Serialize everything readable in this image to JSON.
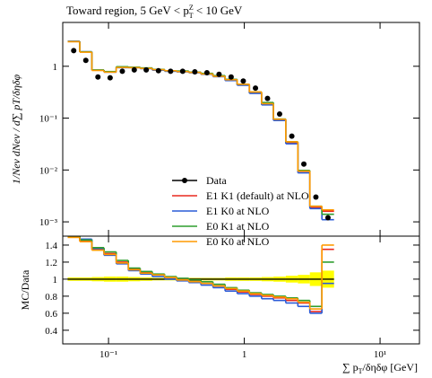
{
  "chart_data": [
    {
      "type": "histogram",
      "yscale": "log",
      "title_parts": [
        "Toward region, 5 GeV < p",
        "Z",
        "T",
        " < 10 GeV"
      ],
      "ylabel": "1/Nev dNev / d∑ pT/δηδφ",
      "bins": [
        0.05,
        0.0614,
        0.0754,
        0.0926,
        0.114,
        0.14,
        0.171,
        0.21,
        0.259,
        0.317,
        0.39,
        0.479,
        0.588,
        0.722,
        0.886,
        1.09,
        1.34,
        1.64,
        2.02,
        2.48,
        3.04,
        3.73,
        4.58
      ],
      "ylim": [
        0.00053,
        7
      ],
      "yticks": [
        {
          "value": 0.001,
          "label": "10⁻³"
        },
        {
          "value": 0.01,
          "label": "10⁻²"
        },
        {
          "value": 0.1,
          "label": "10⁻¹"
        },
        1
      ],
      "legend": "lower center",
      "series": [
        {
          "name": "Data",
          "color": "#000000",
          "marker": "circle",
          "values": [
            2.0,
            1.3,
            0.62,
            0.6,
            0.8,
            0.85,
            0.85,
            0.82,
            0.8,
            0.8,
            0.78,
            0.75,
            0.7,
            0.62,
            0.52,
            0.38,
            0.24,
            0.12,
            0.045,
            0.013,
            0.003,
            0.0012
          ]
        },
        {
          "name": "E1 K1 (default) at NLO",
          "color": "#e8281e",
          "values": [
            3.0,
            1.89,
            0.84,
            0.78,
            0.96,
            0.95,
            0.92,
            0.86,
            0.82,
            0.8,
            0.76,
            0.71,
            0.64,
            0.55,
            0.44,
            0.31,
            0.19,
            0.094,
            0.034,
            0.0094,
            0.0019,
            0.0016
          ]
        },
        {
          "name": "E1 K0 at NLO",
          "color": "#2a5bd7",
          "values": [
            3.04,
            1.91,
            0.84,
            0.77,
            0.94,
            0.94,
            0.9,
            0.84,
            0.8,
            0.78,
            0.75,
            0.7,
            0.63,
            0.53,
            0.43,
            0.3,
            0.18,
            0.09,
            0.032,
            0.0088,
            0.0018,
            0.0011
          ]
        },
        {
          "name": "E0 K1 at NLO",
          "color": "#2f9e2f",
          "values": [
            3.0,
            1.9,
            0.85,
            0.79,
            0.98,
            0.96,
            0.93,
            0.87,
            0.82,
            0.81,
            0.77,
            0.73,
            0.66,
            0.56,
            0.45,
            0.32,
            0.2,
            0.096,
            0.035,
            0.0098,
            0.002,
            0.0014
          ]
        },
        {
          "name": "E0 K0 at NLO",
          "color": "#ff9a00",
          "values": [
            2.98,
            1.87,
            0.83,
            0.77,
            0.95,
            0.94,
            0.91,
            0.86,
            0.82,
            0.79,
            0.76,
            0.71,
            0.64,
            0.55,
            0.45,
            0.32,
            0.19,
            0.095,
            0.035,
            0.0095,
            0.002,
            0.0017
          ]
        }
      ]
    },
    {
      "type": "ratio",
      "ylabel": "MC/Data",
      "xlabel_parts": [
        "∑ p",
        "T",
        "/δηδφ [GeV]"
      ],
      "xscale": "log",
      "xlim": [
        0.046,
        19.5
      ],
      "xticks": [
        {
          "value": 0.1,
          "label": "10⁻¹"
        },
        1,
        {
          "value": 10,
          "label": "10¹"
        }
      ],
      "ylim": [
        0.24,
        1.505
      ],
      "yticks": [
        0.4,
        0.6,
        0.8,
        1,
        1.2,
        1.4
      ],
      "reference_line": 1,
      "band_color": "#ffff00",
      "data_uncertainty": [
        0.02,
        0.02,
        0.025,
        0.03,
        0.03,
        0.025,
        0.02,
        0.015,
        0.015,
        0.015,
        0.015,
        0.015,
        0.015,
        0.02,
        0.02,
        0.02,
        0.025,
        0.03,
        0.04,
        0.05,
        0.08,
        0.1
      ],
      "series": [
        {
          "color": "#e8281e",
          "values": [
            1.5,
            1.45,
            1.35,
            1.3,
            1.2,
            1.12,
            1.08,
            1.05,
            1.02,
            1.0,
            0.98,
            0.95,
            0.92,
            0.88,
            0.85,
            0.82,
            0.8,
            0.78,
            0.75,
            0.72,
            0.62,
            1.35
          ]
        },
        {
          "color": "#2a5bd7",
          "values": [
            1.52,
            1.47,
            1.36,
            1.28,
            1.18,
            1.1,
            1.06,
            1.03,
            1.0,
            0.98,
            0.96,
            0.93,
            0.9,
            0.86,
            0.83,
            0.8,
            0.77,
            0.75,
            0.72,
            0.68,
            0.6,
            0.95
          ]
        },
        {
          "color": "#2f9e2f",
          "values": [
            1.5,
            1.46,
            1.37,
            1.32,
            1.22,
            1.13,
            1.09,
            1.06,
            1.03,
            1.01,
            0.99,
            0.97,
            0.94,
            0.9,
            0.87,
            0.84,
            0.82,
            0.8,
            0.78,
            0.75,
            0.68,
            1.2
          ]
        },
        {
          "color": "#ff9a00",
          "values": [
            1.49,
            1.44,
            1.34,
            1.29,
            1.19,
            1.11,
            1.07,
            1.05,
            1.02,
            0.99,
            0.97,
            0.95,
            0.92,
            0.89,
            0.86,
            0.83,
            0.81,
            0.79,
            0.77,
            0.73,
            0.65,
            1.4
          ]
        }
      ]
    }
  ]
}
